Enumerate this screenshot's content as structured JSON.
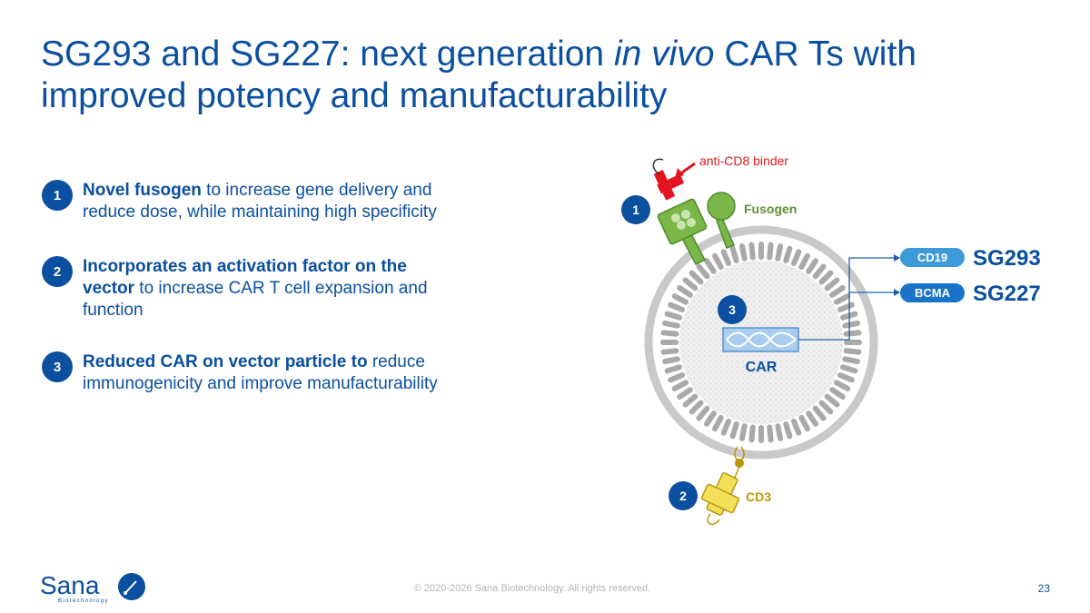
{
  "slide": {
    "title_part1": "SG293 and SG227: next generation ",
    "title_italic": "in vivo",
    "title_part2": " CAR Ts with improved potency and manufacturability"
  },
  "bullets": [
    {
      "number": "1",
      "bold": "Novel fusogen",
      "text": " to increase gene delivery and reduce dose, while maintaining high specificity"
    },
    {
      "number": "2",
      "bold": "Incorporates an activation factor on the vector",
      "text": " to increase CAR T cell expansion and function"
    },
    {
      "number": "3",
      "bold": "Reduced CAR on vector particle to",
      "text": " reduce immunogenicity and improve manufacturability"
    }
  ],
  "diagram": {
    "binder_label": "anti-CD8 binder",
    "fusogen_label": "Fusogen",
    "car_label": "CAR",
    "cd3_label": "CD3",
    "badge_1": "1",
    "badge_2": "2",
    "badge_3": "3",
    "products": [
      {
        "target": "CD19",
        "name": "SG293"
      },
      {
        "target": "BCMA",
        "name": "SG227"
      }
    ]
  },
  "footer": {
    "copyright": "© 2020-2026 Sana Biotechnology. All rights reserved.",
    "page_number": "23",
    "logo_text": "Sana",
    "logo_subtext": "Biotechnology"
  },
  "colors": {
    "brand_blue": "#0b4fa0",
    "binder_red": "#e3141d",
    "fusogen_green": "#7ab648",
    "cd3_yellow": "#f3e05a",
    "pill_blue": "#3d9ad8"
  }
}
